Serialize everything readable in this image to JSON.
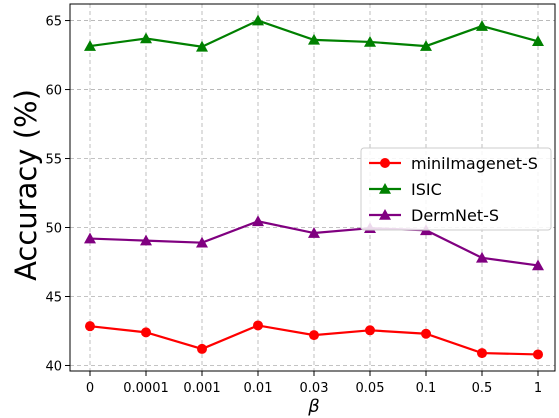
{
  "chart_data": {
    "type": "line",
    "title": "",
    "xlabel": "β",
    "ylabel": "Accuracy (%)",
    "categories": [
      "0",
      "0.0001",
      "0.001",
      "0.01",
      "0.03",
      "0.05",
      "0.1",
      "0.5",
      "1"
    ],
    "ylim": [
      39.6,
      66.2
    ],
    "yticks": [
      "40",
      "45",
      "50",
      "55",
      "60",
      "65"
    ],
    "grid": true,
    "legend_position": "center-right",
    "series": [
      {
        "name": "miniImagenet-S",
        "color": "#ff0000",
        "marker": "circle",
        "values": [
          42.85,
          42.4,
          41.2,
          42.9,
          42.2,
          42.55,
          42.3,
          40.9,
          40.8
        ]
      },
      {
        "name": "ISIC",
        "color": "#008000",
        "marker": "triangle",
        "values": [
          63.15,
          63.7,
          63.1,
          65.0,
          63.6,
          63.45,
          63.15,
          64.6,
          63.5
        ]
      },
      {
        "name": "DermNet-S",
        "color": "#800080",
        "marker": "triangle",
        "values": [
          49.2,
          49.05,
          48.9,
          50.45,
          49.6,
          49.95,
          49.8,
          47.8,
          47.25
        ]
      }
    ]
  }
}
